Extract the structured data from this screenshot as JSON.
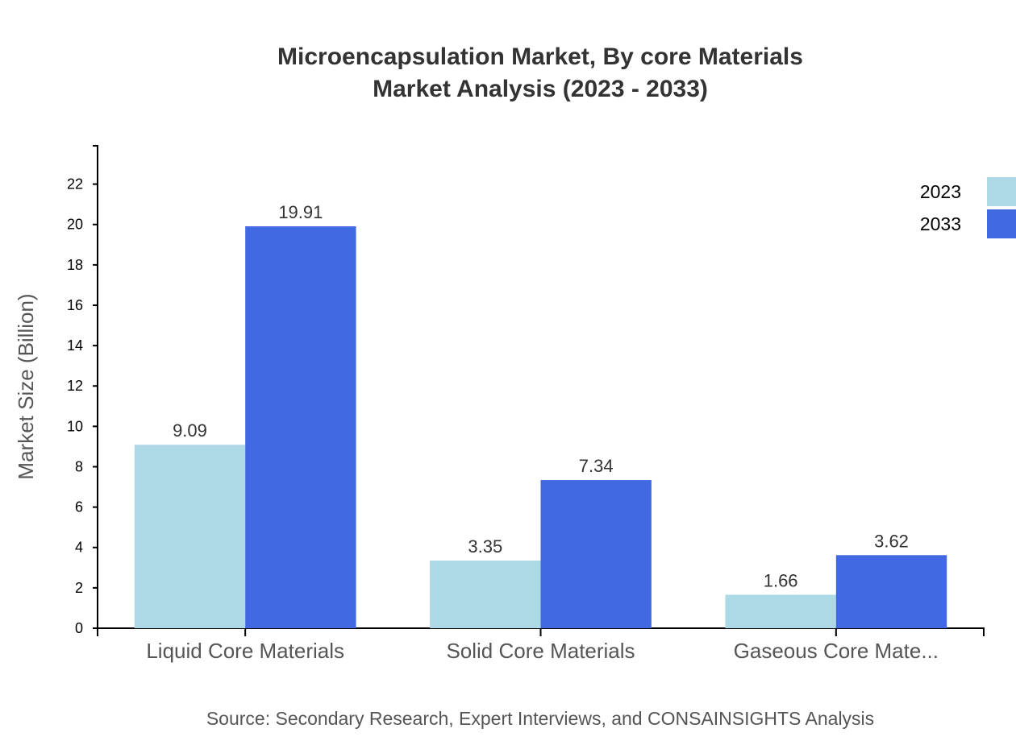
{
  "chart_data": {
    "type": "bar",
    "title": "Microencapsulation Market, By core Materials",
    "subtitle": "Market Analysis (2023 - 2033)",
    "xlabel": "",
    "ylabel": "Market Size (Billion)",
    "ylim": [
      0,
      23.9
    ],
    "yticks": [
      0,
      2,
      4,
      6,
      8,
      10,
      12,
      14,
      16,
      18,
      20,
      22
    ],
    "categories": [
      "Liquid Core Materials",
      "Solid Core Materials",
      "Gaseous Core Mate..."
    ],
    "series": [
      {
        "name": "2023",
        "values": [
          9.09,
          3.35,
          1.66
        ],
        "color": "#ADD8E6"
      },
      {
        "name": "2033",
        "values": [
          19.91,
          7.34,
          3.62
        ],
        "color": "#4169E1"
      }
    ],
    "grid": false,
    "legend_position": "top-right",
    "source": "Source: Secondary Research, Expert Interviews, and CONSAINSIGHTS Analysis"
  }
}
